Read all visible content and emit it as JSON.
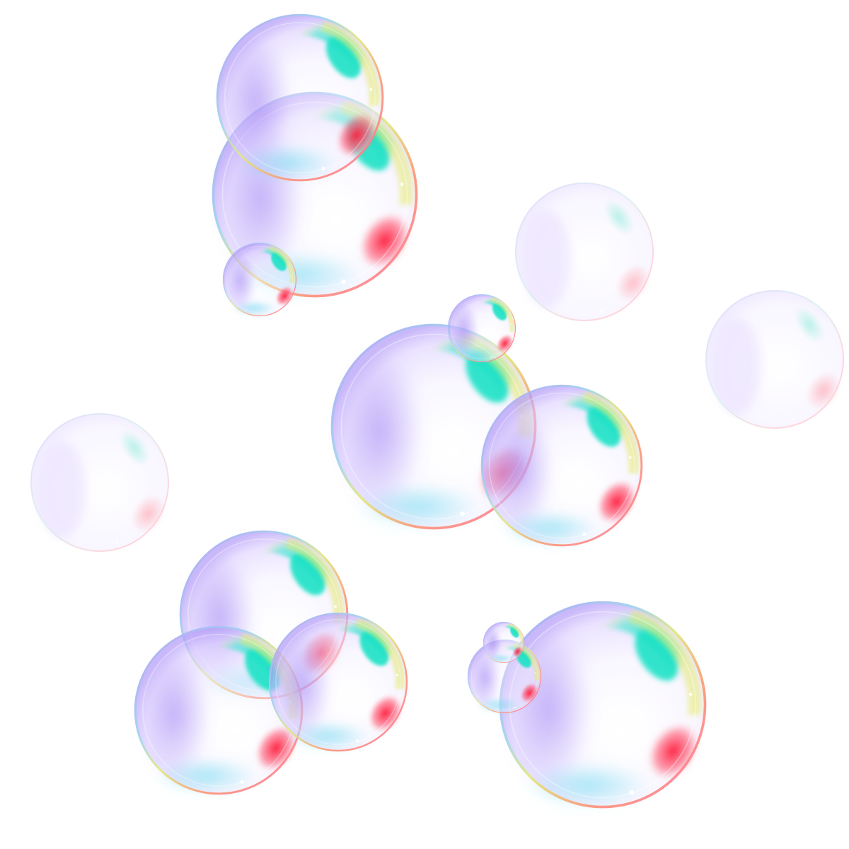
{
  "scene": {
    "background": "#ffffff",
    "subject": "soap-bubbles",
    "bubble_count": 16,
    "palette": {
      "violet": "#9b7cf2",
      "cyan": "#22e0cf",
      "yellow_green": "#dfe86a",
      "red": "#ff1f3c",
      "inner_tint": "#f3efff"
    },
    "styles": [
      "vivid",
      "pale"
    ]
  }
}
